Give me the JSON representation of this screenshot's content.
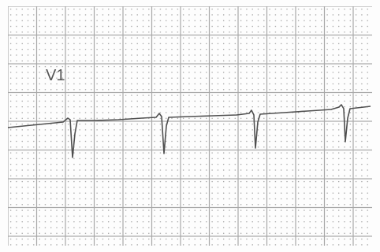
{
  "lead_label": "V1"
}
